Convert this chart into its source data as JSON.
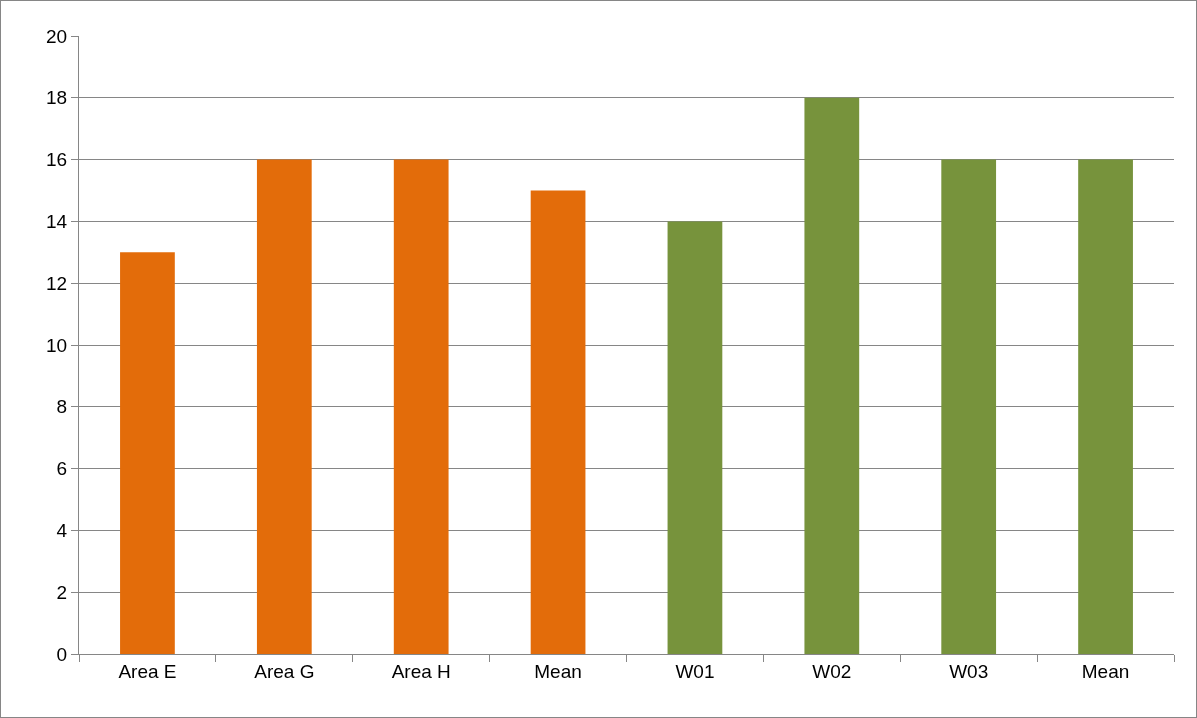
{
  "chart_data": {
    "type": "bar",
    "categories": [
      "Area E",
      "Area G",
      "Area H",
      "Mean",
      "W01",
      "W02",
      "W03",
      "Mean"
    ],
    "series": [
      {
        "colors": [
          "#e36c0a",
          "#e36c0a",
          "#e36c0a",
          "#e36c0a",
          "#77933c",
          "#77933c",
          "#77933c",
          "#77933c"
        ],
        "values": [
          13,
          16,
          16,
          15,
          14,
          18,
          16,
          16
        ]
      }
    ],
    "ylim": [
      0,
      20
    ],
    "yticks": [
      0,
      2,
      4,
      6,
      8,
      10,
      12,
      14,
      16,
      18,
      20
    ],
    "grid": "y",
    "legend": false
  }
}
